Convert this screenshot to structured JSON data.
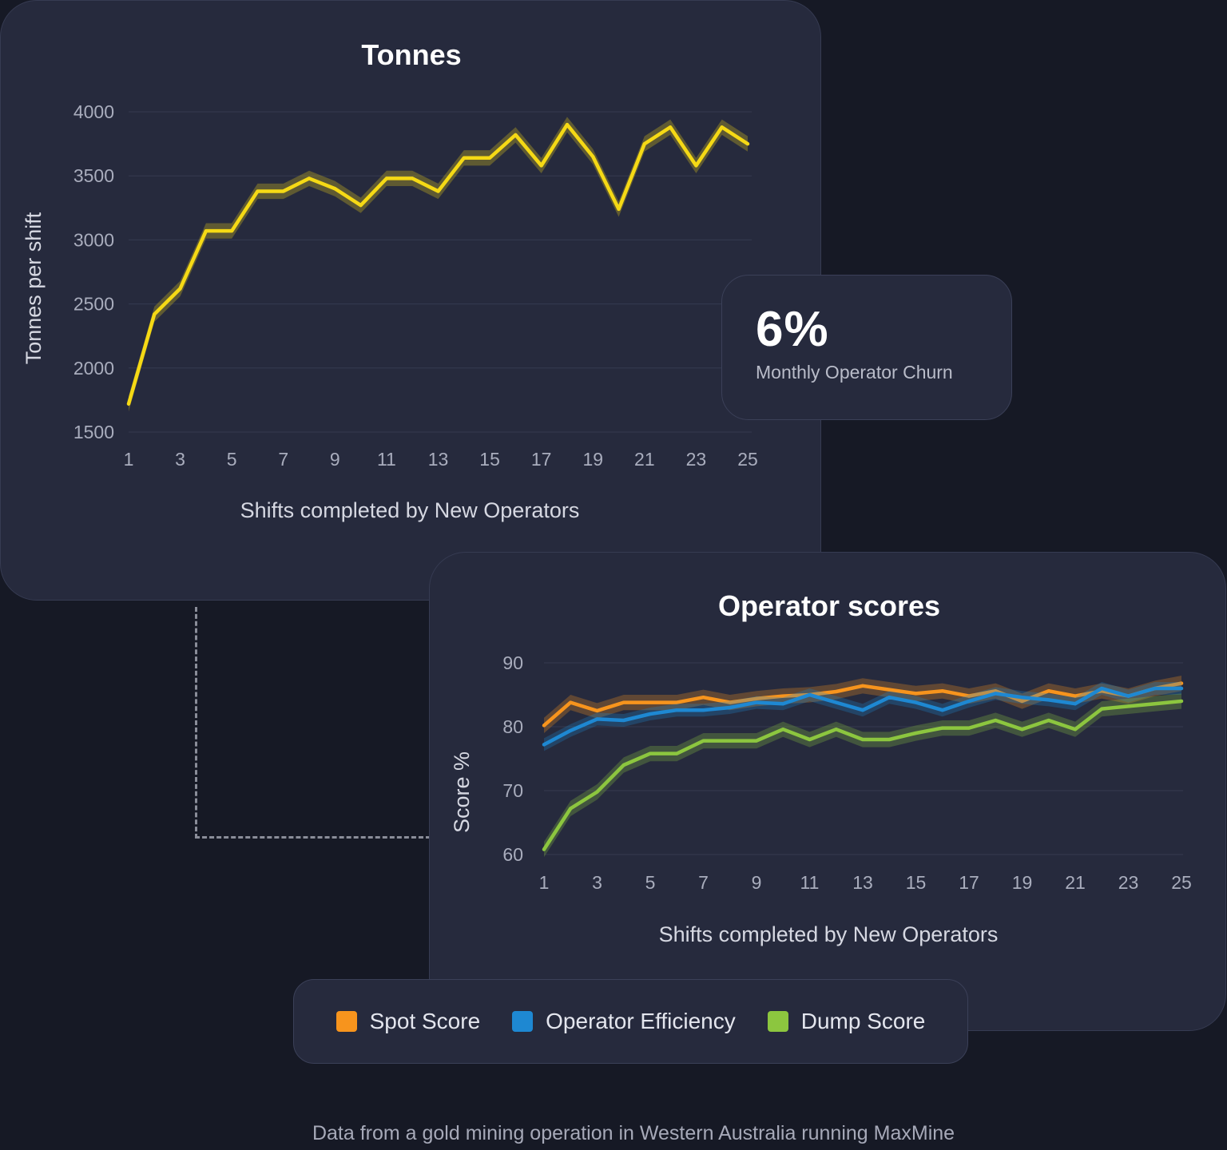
{
  "tonnes_panel": {
    "title": "Tonnes",
    "ylabel": "Tonnes per shift",
    "xlabel": "Shifts completed by New Operators"
  },
  "churn": {
    "value": "6%",
    "label": "Monthly Operator Churn"
  },
  "scores_panel": {
    "title": "Operator scores",
    "ylabel": "Score %",
    "xlabel": "Shifts completed by New Operators"
  },
  "legend": [
    {
      "label": "Spot Score",
      "color": "#f7941d"
    },
    {
      "label": "Operator Efficiency",
      "color": "#1e88d2"
    },
    {
      "label": "Dump Score",
      "color": "#8cc63f"
    }
  ],
  "footnote": "Data from a gold mining operation in Western Australia running MaxMine",
  "chart_data": [
    {
      "type": "line",
      "title": "Tonnes",
      "xlabel": "Shifts completed by New Operators",
      "ylabel": "Tonnes per shift",
      "ylim": [
        1500,
        4000
      ],
      "yticks": [
        4000,
        3500,
        3000,
        2500,
        2000,
        1500
      ],
      "xticks": [
        1,
        3,
        5,
        7,
        9,
        11,
        13,
        15,
        17,
        19,
        21,
        23,
        25
      ],
      "grid": true,
      "series": [
        {
          "name": "Tonnes",
          "color": "#f5d915",
          "band": 60,
          "x": [
            1,
            2,
            3,
            4,
            5,
            6,
            7,
            8,
            9,
            10,
            11,
            12,
            13,
            14,
            15,
            16,
            17,
            18,
            19,
            20,
            21,
            22,
            23,
            24,
            25
          ],
          "values": [
            1720,
            2420,
            2620,
            3070,
            3070,
            3380,
            3380,
            3480,
            3400,
            3270,
            3480,
            3480,
            3380,
            3640,
            3640,
            3820,
            3580,
            3900,
            3650,
            3240,
            3750,
            3880,
            3580,
            3880,
            3750
          ]
        }
      ]
    },
    {
      "type": "line",
      "title": "Operator scores",
      "xlabel": "Shifts completed by New Operators",
      "ylabel": "Score %",
      "ylim": [
        60,
        90
      ],
      "yticks": [
        90,
        80,
        70,
        60
      ],
      "xticks": [
        1,
        3,
        5,
        7,
        9,
        11,
        13,
        15,
        17,
        19,
        21,
        23,
        25
      ],
      "grid": true,
      "series": [
        {
          "name": "Spot Score",
          "color": "#f7941d",
          "band": 1.2,
          "x": [
            1,
            2,
            3,
            4,
            5,
            6,
            7,
            8,
            9,
            10,
            11,
            12,
            13,
            14,
            15,
            16,
            17,
            18,
            19,
            20,
            21,
            22,
            23,
            24,
            25
          ],
          "values": [
            80.2,
            83.8,
            82.5,
            83.8,
            83.8,
            83.8,
            84.6,
            83.8,
            84.4,
            84.8,
            85,
            85.5,
            86.4,
            85.8,
            85.2,
            85.6,
            84.8,
            85.6,
            84,
            85.6,
            84.8,
            85.6,
            84.8,
            86,
            86.8
          ]
        },
        {
          "name": "Operator Efficiency",
          "color": "#1e88d2",
          "band": 1.0,
          "x": [
            1,
            2,
            3,
            4,
            5,
            6,
            7,
            8,
            9,
            10,
            11,
            12,
            13,
            14,
            15,
            16,
            17,
            18,
            19,
            20,
            21,
            22,
            23,
            24,
            25
          ],
          "values": [
            77.2,
            79.4,
            81.2,
            81,
            82,
            82.6,
            82.6,
            83,
            83.8,
            83.6,
            85,
            83.8,
            82.6,
            84.6,
            83.8,
            82.6,
            84,
            85.2,
            84.6,
            84.2,
            83.6,
            86,
            84.8,
            86,
            86
          ]
        },
        {
          "name": "Dump Score",
          "color": "#8cc63f",
          "band": 1.2,
          "x": [
            1,
            2,
            3,
            4,
            5,
            6,
            7,
            8,
            9,
            10,
            11,
            12,
            13,
            14,
            15,
            16,
            17,
            18,
            19,
            20,
            21,
            22,
            23,
            24,
            25
          ],
          "values": [
            60.8,
            67.2,
            69.8,
            74,
            75.8,
            75.8,
            77.8,
            77.8,
            77.8,
            79.6,
            78,
            79.6,
            78,
            78,
            79,
            79.8,
            79.8,
            81,
            79.6,
            81,
            79.6,
            82.8,
            83.2,
            83.6,
            84
          ]
        }
      ]
    }
  ]
}
